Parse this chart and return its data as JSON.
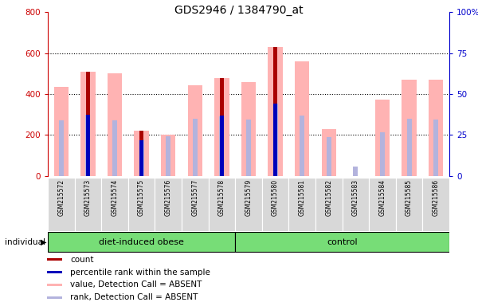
{
  "title": "GDS2946 / 1384790_at",
  "samples": [
    "GSM215572",
    "GSM215573",
    "GSM215574",
    "GSM215575",
    "GSM215576",
    "GSM215577",
    "GSM215578",
    "GSM215579",
    "GSM215580",
    "GSM215581",
    "GSM215582",
    "GSM215583",
    "GSM215584",
    "GSM215585",
    "GSM215586"
  ],
  "count": [
    0,
    510,
    0,
    220,
    0,
    0,
    480,
    0,
    630,
    0,
    0,
    0,
    0,
    0,
    0
  ],
  "percentile_rank": [
    0,
    300,
    0,
    175,
    0,
    0,
    295,
    0,
    355,
    0,
    0,
    0,
    0,
    0,
    0
  ],
  "pink_bar_top": [
    435,
    510,
    500,
    220,
    200,
    445,
    480,
    460,
    630,
    560,
    230,
    0,
    375,
    470,
    470
  ],
  "light_blue_bar": [
    270,
    300,
    270,
    180,
    195,
    280,
    290,
    275,
    355,
    295,
    190,
    45,
    215,
    280,
    275
  ],
  "has_red_bar": [
    false,
    true,
    false,
    true,
    false,
    false,
    true,
    false,
    true,
    false,
    false,
    false,
    false,
    false,
    false
  ],
  "left_yticks": [
    0,
    200,
    400,
    600,
    800
  ],
  "right_yticklabels": [
    "0",
    "25",
    "50",
    "75",
    "100%"
  ],
  "left_color": "#cc0000",
  "right_color": "#0000cc",
  "pink_color": "#ffb3b3",
  "light_blue_color": "#b3b3dd",
  "dark_red_color": "#aa0000",
  "dark_blue_color": "#0000bb",
  "bg_color": "#d8d8d8",
  "group1_color": "#77dd77",
  "group2_color": "#77dd77",
  "group1_label": "diet-induced obese",
  "group2_label": "control",
  "individual_label": "individual",
  "legend_items": [
    "count",
    "percentile rank within the sample",
    "value, Detection Call = ABSENT",
    "rank, Detection Call = ABSENT"
  ],
  "n_group1": 7,
  "n_group2": 8
}
